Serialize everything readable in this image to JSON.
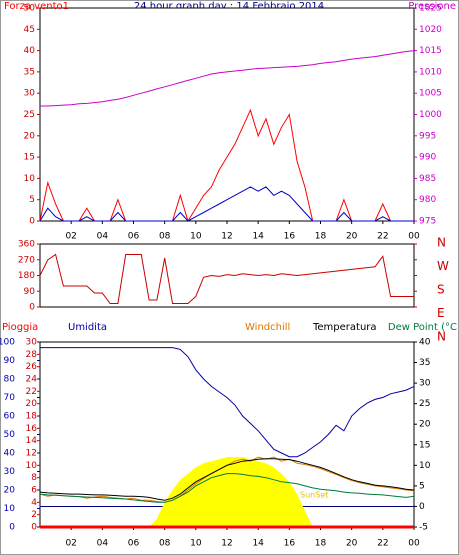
{
  "chart_data": [
    {
      "type": "line",
      "title": "24 hour graph day : 14 Febbraio 2014",
      "x": [
        0,
        0.5,
        1,
        1.5,
        2,
        2.5,
        3,
        3.5,
        4,
        4.5,
        5,
        5.5,
        6,
        6.5,
        7,
        7.5,
        8,
        8.5,
        9,
        9.5,
        10,
        10.5,
        11,
        11.5,
        12,
        12.5,
        13,
        13.5,
        14,
        14.5,
        15,
        15.5,
        16,
        16.5,
        17,
        17.5,
        18,
        18.5,
        19,
        19.5,
        20,
        20.5,
        21,
        21.5,
        22,
        22.5,
        23,
        23.5,
        24
      ],
      "xlim": [
        0,
        24
      ],
      "xticks": [
        {
          "value": 2,
          "label": "02"
        },
        {
          "value": 4,
          "label": "04"
        },
        {
          "value": 6,
          "label": "06"
        },
        {
          "value": 8,
          "label": "08"
        },
        10,
        12,
        14,
        16,
        18,
        20,
        22,
        {
          "value": 24,
          "label": "00"
        }
      ],
      "ylim": [
        0,
        50
      ],
      "yticks": [
        0,
        5,
        10,
        15,
        20,
        25,
        30,
        35,
        40,
        45,
        50
      ],
      "y2lim": [
        975,
        1025
      ],
      "y2ticks": [
        975,
        980,
        985,
        990,
        995,
        1000,
        1005,
        1010,
        1015,
        1020,
        1025
      ],
      "series": [
        {
          "name": "Forza vento1",
          "color": "#ff0000",
          "values": [
            0,
            9,
            4,
            0,
            0,
            0,
            3,
            0,
            0,
            0,
            5,
            0,
            0,
            0,
            0,
            0,
            0,
            0,
            6,
            0,
            3,
            6,
            8,
            12,
            15,
            18,
            22,
            26,
            20,
            24,
            18,
            22,
            25,
            14,
            8,
            0,
            0,
            0,
            0,
            5,
            0,
            0,
            0,
            0,
            4,
            0,
            0,
            0,
            0
          ]
        },
        {
          "color": "#0000cc",
          "values": [
            0,
            3,
            1,
            0,
            0,
            0,
            1,
            0,
            0,
            0,
            2,
            0,
            0,
            0,
            0,
            0,
            0,
            0,
            2,
            0,
            1,
            2,
            3,
            4,
            5,
            6,
            7,
            8,
            7,
            8,
            6,
            7,
            6,
            4,
            2,
            0,
            0,
            0,
            0,
            2,
            0,
            0,
            0,
            0,
            1,
            0,
            0,
            0,
            0
          ]
        },
        {
          "name": "Pressione",
          "color": "#cc00cc",
          "axis": "y2",
          "values": [
            1002,
            1002,
            1002.1,
            1002.2,
            1002.3,
            1002.5,
            1002.6,
            1002.8,
            1003,
            1003.3,
            1003.6,
            1004,
            1004.5,
            1005,
            1005.5,
            1006,
            1006.5,
            1007,
            1007.5,
            1008,
            1008.5,
            1009,
            1009.5,
            1009.8,
            1010,
            1010.2,
            1010.4,
            1010.6,
            1010.8,
            1010.9,
            1011,
            1011.1,
            1011.2,
            1011.3,
            1011.5,
            1011.7,
            1012,
            1012.2,
            1012.4,
            1012.7,
            1013,
            1013.2,
            1013.4,
            1013.6,
            1013.9,
            1014.2,
            1014.5,
            1014.8,
            1015
          ]
        }
      ]
    },
    {
      "type": "line",
      "x": [
        0,
        0.5,
        1,
        1.5,
        2,
        2.5,
        3,
        3.5,
        4,
        4.5,
        5,
        5.5,
        6,
        6.5,
        7,
        7.5,
        8,
        8.5,
        9,
        9.5,
        10,
        10.5,
        11,
        11.5,
        12,
        12.5,
        13,
        13.5,
        14,
        14.5,
        15,
        15.5,
        16,
        16.5,
        17,
        17.5,
        18,
        18.5,
        19,
        19.5,
        20,
        20.5,
        21,
        21.5,
        22,
        22.5,
        23,
        23.5,
        24
      ],
      "xlim": [
        0,
        24
      ],
      "ylim": [
        0,
        360
      ],
      "yticks": [
        0,
        90,
        180,
        270,
        360
      ],
      "y2lim": [
        0,
        360
      ],
      "y2ticks": [
        {
          "value": 0,
          "label": "N"
        },
        {
          "value": 90,
          "label": "E"
        },
        {
          "value": 180,
          "label": "S"
        },
        {
          "value": 270,
          "label": "W"
        },
        {
          "value": 360,
          "label": "N"
        }
      ],
      "series": [
        {
          "color": "#cc0000",
          "values": [
            180,
            270,
            300,
            120,
            120,
            120,
            120,
            80,
            80,
            20,
            20,
            300,
            300,
            300,
            40,
            40,
            280,
            20,
            20,
            20,
            60,
            170,
            180,
            175,
            185,
            180,
            190,
            185,
            180,
            185,
            180,
            190,
            185,
            180,
            185,
            190,
            195,
            200,
            205,
            210,
            215,
            220,
            225,
            230,
            290,
            60,
            60,
            60,
            60
          ]
        }
      ]
    },
    {
      "type": "line",
      "x": [
        0,
        0.5,
        1,
        1.5,
        2,
        2.5,
        3,
        3.5,
        4,
        4.5,
        5,
        5.5,
        6,
        6.5,
        7,
        7.5,
        8,
        8.5,
        9,
        9.5,
        10,
        10.5,
        11,
        11.5,
        12,
        12.5,
        13,
        13.5,
        14,
        14.5,
        15,
        15.5,
        16,
        16.5,
        17,
        17.5,
        18,
        18.5,
        19,
        19.5,
        20,
        20.5,
        21,
        21.5,
        22,
        22.5,
        23,
        23.5,
        24
      ],
      "xlim": [
        0,
        24
      ],
      "xticks": [
        {
          "value": 2,
          "label": "02"
        },
        {
          "value": 4,
          "label": "04"
        },
        {
          "value": 6,
          "label": "06"
        },
        {
          "value": 8,
          "label": "08"
        },
        10,
        12,
        14,
        16,
        18,
        20,
        22,
        {
          "value": 24,
          "label": "00"
        }
      ],
      "ylim": [
        0,
        30
      ],
      "yticks": [
        0,
        2,
        4,
        6,
        8,
        10,
        12,
        14,
        16,
        18,
        20,
        22,
        24,
        26,
        28,
        30
      ],
      "y2lim": [
        -5,
        40
      ],
      "y2ticks": [
        -5,
        0,
        5,
        10,
        15,
        20,
        25,
        30,
        35,
        40
      ],
      "y3lim": [
        0,
        100
      ],
      "y3ticks": [
        0,
        10,
        20,
        30,
        40,
        50,
        60,
        70,
        80,
        90,
        100
      ],
      "annotations": [
        "SunSet"
      ],
      "series": [
        {
          "color": "#ffff00",
          "axis": "y2",
          "area": true,
          "values": [
            -5,
            -5,
            -5,
            -5,
            -5,
            -5,
            -5,
            -5,
            -5,
            -5,
            -5,
            -5,
            -5,
            -5,
            -5,
            -3,
            1,
            4,
            6.5,
            8,
            9.5,
            10.5,
            11,
            11.5,
            12,
            12,
            12,
            11.5,
            11,
            10.5,
            9.5,
            8,
            6,
            3,
            -1,
            -5,
            -5,
            -5,
            -5,
            -5,
            -5,
            -5,
            -5,
            -5,
            -5,
            -5,
            -5,
            -5,
            -5
          ]
        },
        {
          "name": "Pioggia",
          "color": "#ff0000",
          "values": [
            0,
            0,
            0,
            0,
            0,
            0,
            0,
            0,
            0,
            0,
            0,
            0,
            0,
            0,
            0,
            0,
            0,
            0,
            0,
            0,
            0,
            0,
            0,
            0,
            0,
            0,
            0,
            0,
            0,
            0,
            0,
            0,
            0,
            0,
            0,
            0,
            0,
            0,
            0,
            0,
            0,
            0,
            0,
            0,
            0,
            0,
            0,
            0,
            0
          ]
        },
        {
          "name": "Umidita",
          "color": "#0000aa",
          "axis": "y3",
          "values": [
            97,
            97,
            97,
            97,
            97,
            97,
            97,
            97,
            97,
            97,
            97,
            97,
            97,
            97,
            97,
            97,
            97,
            97,
            96,
            92,
            85,
            80,
            76,
            73,
            70,
            66,
            60,
            56,
            52,
            47,
            42,
            40,
            38,
            38,
            40,
            43,
            46,
            50,
            55,
            52,
            60,
            64,
            67,
            69,
            70,
            72,
            73,
            74,
            76
          ]
        },
        {
          "name": "Windchill",
          "color": "#e07800",
          "axis": "y2",
          "values": [
            3,
            2.5,
            2.8,
            2.6,
            2.5,
            2.4,
            2,
            2.3,
            2.5,
            2.2,
            2,
            1.8,
            2,
            1.5,
            1.5,
            1.2,
            1,
            1.5,
            2.5,
            4,
            5.5,
            6.8,
            8,
            9,
            10,
            11,
            11.5,
            11,
            12,
            11.5,
            12,
            11,
            11.5,
            10.5,
            10.2,
            9.8,
            9.2,
            8.5,
            7.8,
            7,
            6.3,
            5.8,
            5.4,
            5,
            4.8,
            4.5,
            4.3,
            4,
            3.8
          ]
        },
        {
          "name": "Temperatura",
          "color": "#000000",
          "axis": "y2",
          "values": [
            3.5,
            3.3,
            3.2,
            3.1,
            3,
            3,
            2.9,
            2.8,
            2.8,
            2.7,
            2.6,
            2.5,
            2.5,
            2.4,
            2.2,
            1.8,
            1.5,
            2,
            3,
            4.5,
            6,
            7,
            8,
            9,
            10,
            10.5,
            11,
            11.2,
            11.5,
            11.6,
            11.6,
            11.5,
            11.4,
            11,
            10.5,
            10,
            9.5,
            8.8,
            8,
            7.2,
            6.5,
            6,
            5.6,
            5.2,
            5,
            4.8,
            4.5,
            4.2,
            4
          ]
        },
        {
          "name": "Dew Point (°C",
          "color": "#007a3d",
          "axis": "y2",
          "values": [
            3,
            2.8,
            2.7,
            2.6,
            2.5,
            2.4,
            2.3,
            2.2,
            2.1,
            2,
            1.9,
            1.8,
            1.6,
            1.4,
            1.2,
            1,
            1,
            1.5,
            2.5,
            3.5,
            5,
            6,
            7,
            7.5,
            8,
            8,
            7.8,
            7.5,
            7.3,
            7,
            6.5,
            6,
            5.8,
            5.5,
            5,
            4.5,
            4.2,
            4,
            3.8,
            3.5,
            3.3,
            3.2,
            3,
            2.9,
            2.8,
            2.6,
            2.4,
            2.2,
            2.5
          ]
        }
      ]
    }
  ]
}
